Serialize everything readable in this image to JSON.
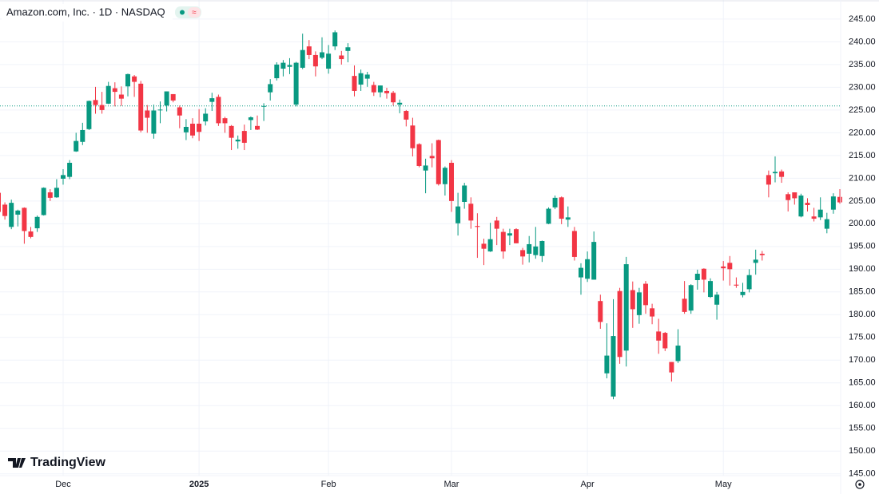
{
  "chart_data": {
    "type": "candlestick",
    "title": "Amazon.com, Inc. · 1D · NASDAQ",
    "watermark": "TradingView",
    "categories": [
      null,
      null,
      null,
      null,
      null,
      null,
      null,
      null,
      null,
      null,
      "Dec",
      null,
      null,
      null,
      null,
      null,
      null,
      null,
      null,
      null,
      null,
      null,
      null,
      null,
      null,
      null,
      null,
      null,
      null,
      null,
      null,
      "2025",
      null,
      null,
      null,
      null,
      null,
      null,
      null,
      null,
      null,
      null,
      null,
      null,
      null,
      null,
      null,
      null,
      null,
      null,
      null,
      "Feb",
      null,
      null,
      null,
      null,
      null,
      null,
      null,
      null,
      null,
      null,
      null,
      null,
      null,
      null,
      null,
      null,
      null,
      null,
      "Mar",
      null,
      null,
      null,
      null,
      null,
      null,
      null,
      null,
      null,
      null,
      null,
      null,
      null,
      null,
      null,
      null,
      null,
      null,
      null,
      null,
      "Apr",
      null,
      null,
      null,
      null,
      null,
      null,
      null,
      null,
      null,
      null,
      null,
      null,
      null,
      null,
      null,
      null,
      null,
      null,
      null,
      null,
      "May",
      null,
      null,
      null,
      null,
      null,
      null,
      null,
      null,
      null,
      null,
      null,
      null,
      null,
      null,
      null,
      null,
      null,
      null
    ],
    "open": [
      206.8,
      204.2,
      199.3,
      202.0,
      203.5,
      198.3,
      199.0,
      201.9,
      206.9,
      205.8,
      209.9,
      210.3,
      215.9,
      218.0,
      220.8,
      227.2,
      226.1,
      226.4,
      229.8,
      228.4,
      230.2,
      232.4,
      230.8,
      224.9,
      219.8,
      225.0,
      226.0,
      228.5,
      225.6,
      220.1,
      222.0,
      222.0,
      222.5,
      226.8,
      227.9,
      223.2,
      221.5,
      218.1,
      220.4,
      222.8,
      221.5,
      225.8,
      228.9,
      232.0,
      234.1,
      234.5,
      226.2,
      234.3,
      239.0,
      237.1,
      236.5,
      234.1,
      239.0,
      237.0,
      238.0,
      232.5,
      230.6,
      231.9,
      230.5,
      228.9,
      229.2,
      228.8,
      226.2,
      224.8,
      221.6,
      217.5,
      211.7,
      214.9,
      218.4,
      208.7,
      213.4,
      200.1,
      204.8,
      204.4,
      199.5,
      195.6,
      193.9,
      200.7,
      198.2,
      197.4,
      198.8,
      194.2,
      193.4,
      193.1,
      192.9,
      200.0,
      203.6,
      205.8,
      200.9,
      198.4,
      188.2,
      187.9,
      187.7,
      183.0,
      167.1,
      162.0,
      185.2,
      172.1,
      185.4,
      179.9,
      186.8,
      181.4,
      176.3,
      176.0,
      169.6,
      169.8,
      183.5,
      180.9,
      187.6,
      190.1,
      183.9,
      182.2,
      190.6,
      191.4,
      186.6,
      184.3,
      185.6,
      191.4,
      193.4,
      210.7,
      211.1,
      211.5,
      206.5,
      206.9,
      201.6,
      204.6,
      201.6,
      201.4,
      198.9,
      203.1,
      205.9
    ],
    "high": [
      207.3,
      204.7,
      205.3,
      203.1,
      203.6,
      199.3,
      201.8,
      208.0,
      207.6,
      209.8,
      212.0,
      214.0,
      220.0,
      222.2,
      227.1,
      230.1,
      229.0,
      231.2,
      231.1,
      230.2,
      233.0,
      232.7,
      231.4,
      226.1,
      226.2,
      226.9,
      229.1,
      228.5,
      226.0,
      223.0,
      223.2,
      225.2,
      225.4,
      228.8,
      228.4,
      223.5,
      221.7,
      219.4,
      221.8,
      223.6,
      223.8,
      226.5,
      231.8,
      235.5,
      236.0,
      236.4,
      235.6,
      241.8,
      240.4,
      237.9,
      241.0,
      239.3,
      242.5,
      238.0,
      239.7,
      234.8,
      233.9,
      233.4,
      231.2,
      230.4,
      229.9,
      229.2,
      227.3,
      225.0,
      223.3,
      217.7,
      214.3,
      217.7,
      218.5,
      212.6,
      214.0,
      206.8,
      209.0,
      205.8,
      202.3,
      196.7,
      200.2,
      201.5,
      198.9,
      198.9,
      199.0,
      194.7,
      197.3,
      199.3,
      196.3,
      203.6,
      206.2,
      206.0,
      203.8,
      199.3,
      191.3,
      193.9,
      198.3,
      184.4,
      178.1,
      183.4,
      185.9,
      192.7,
      187.3,
      185.9,
      187.4,
      182.4,
      179.1,
      176.2,
      169.6,
      176.8,
      187.4,
      186.7,
      189.9,
      190.2,
      188.0,
      185.0,
      191.8,
      192.9,
      188.2,
      187.0,
      190.0,
      194.3,
      194.0,
      211.7,
      214.8,
      211.9,
      206.9,
      206.9,
      206.6,
      205.6,
      203.5,
      205.8,
      202.4,
      206.7,
      207.6
    ],
    "low": [
      199.6,
      200.9,
      198.8,
      199.4,
      195.6,
      196.8,
      198.2,
      201.8,
      205.0,
      205.7,
      208.6,
      209.8,
      215.8,
      217.3,
      220.6,
      224.2,
      224.2,
      226.3,
      225.8,
      225.9,
      228.0,
      227.9,
      220.1,
      220.0,
      218.7,
      222.1,
      224.7,
      226.7,
      221.0,
      218.4,
      218.8,
      218.2,
      221.6,
      224.8,
      221.5,
      220.0,
      216.2,
      216.5,
      216.2,
      220.6,
      220.6,
      222.6,
      227.1,
      231.5,
      232.4,
      232.9,
      225.8,
      234.0,
      236.2,
      232.4,
      236.2,
      233.0,
      238.2,
      235.0,
      235.5,
      228.0,
      229.2,
      230.1,
      228.1,
      227.8,
      227.5,
      226.0,
      224.3,
      221.4,
      214.8,
      212.4,
      206.7,
      212.4,
      208.4,
      206.2,
      202.6,
      197.4,
      203.3,
      198.9,
      192.5,
      190.9,
      193.8,
      195.3,
      192.3,
      195.3,
      195.7,
      191.0,
      191.5,
      192.3,
      191.6,
      199.9,
      203.2,
      199.9,
      199.3,
      191.9,
      184.4,
      187.2,
      187.7,
      176.9,
      166.0,
      161.4,
      169.2,
      168.6,
      177.1,
      178.0,
      180.2,
      177.9,
      171.4,
      172.0,
      165.3,
      169.4,
      180.2,
      180.2,
      185.5,
      184.9,
      183.7,
      178.9,
      187.5,
      186.4,
      185.9,
      183.8,
      184.9,
      188.8,
      191.9,
      205.8,
      209.1,
      209.0,
      202.7,
      204.2,
      201.4,
      202.7,
      200.5,
      200.8,
      197.9,
      202.2,
      204.4
    ],
    "close": [
      202.6,
      201.7,
      204.6,
      202.9,
      198.4,
      197.1,
      201.5,
      207.9,
      205.7,
      207.9,
      210.7,
      213.4,
      218.2,
      220.6,
      227.0,
      226.1,
      225.0,
      230.3,
      229.0,
      227.5,
      232.9,
      231.2,
      220.5,
      223.3,
      224.9,
      225.1,
      229.1,
      227.1,
      223.8,
      221.3,
      219.4,
      220.2,
      224.2,
      227.6,
      222.1,
      222.1,
      218.9,
      218.5,
      217.8,
      223.4,
      220.7,
      225.9,
      230.7,
      235.0,
      235.4,
      234.9,
      235.4,
      238.2,
      237.1,
      234.6,
      237.7,
      237.4,
      242.1,
      236.2,
      238.8,
      229.2,
      233.1,
      232.8,
      228.9,
      230.4,
      228.7,
      226.7,
      226.6,
      222.9,
      216.6,
      212.7,
      212.8,
      214.4,
      208.7,
      212.3,
      205.0,
      203.8,
      208.4,
      200.7,
      199.3,
      194.5,
      196.6,
      198.9,
      193.9,
      197.9,
      195.7,
      192.8,
      195.5,
      195.0,
      196.2,
      203.3,
      205.7,
      201.1,
      201.4,
      192.7,
      190.3,
      192.2,
      196.0,
      178.4,
      171.0,
      175.3,
      170.7,
      191.1,
      181.2,
      184.9,
      182.1,
      179.6,
      174.3,
      172.6,
      167.3,
      173.2,
      180.6,
      186.5,
      189.0,
      187.7,
      187.4,
      184.4,
      190.2,
      190.0,
      186.4,
      185.0,
      188.7,
      192.1,
      193.1,
      208.6,
      211.4,
      210.3,
      205.2,
      205.6,
      206.2,
      204.1,
      201.1,
      203.1,
      201.0,
      206.0,
      204.7
    ],
    "up_color": "#089981",
    "down_color": "#f23645",
    "price_line": 225.9,
    "ylim": [
      144.6,
      249.2
    ],
    "yticks": [
      {
        "value": 145,
        "label": "145.00"
      },
      {
        "value": 150,
        "label": "150.00"
      },
      {
        "value": 155,
        "label": "155.00"
      },
      {
        "value": 160,
        "label": "160.00"
      },
      {
        "value": 165,
        "label": "165.00"
      },
      {
        "value": 170,
        "label": "170.00"
      },
      {
        "value": 175,
        "label": "175.00"
      },
      {
        "value": 180,
        "label": "180.00"
      },
      {
        "value": 185,
        "label": "185.00"
      },
      {
        "value": 190,
        "label": "190.00"
      },
      {
        "value": 195,
        "label": "195.00"
      },
      {
        "value": 200,
        "label": "200.00"
      },
      {
        "value": 205,
        "label": "205.00"
      },
      {
        "value": 210,
        "label": "210.00"
      },
      {
        "value": 215,
        "label": "215.00"
      },
      {
        "value": 220,
        "label": "220.00"
      },
      {
        "value": 225,
        "label": "225.00"
      },
      {
        "value": 230,
        "label": "230.00"
      },
      {
        "value": 235,
        "label": "235.00"
      },
      {
        "value": 240,
        "label": "240.00"
      },
      {
        "value": 245,
        "label": "245.00"
      }
    ],
    "grid": true
  }
}
